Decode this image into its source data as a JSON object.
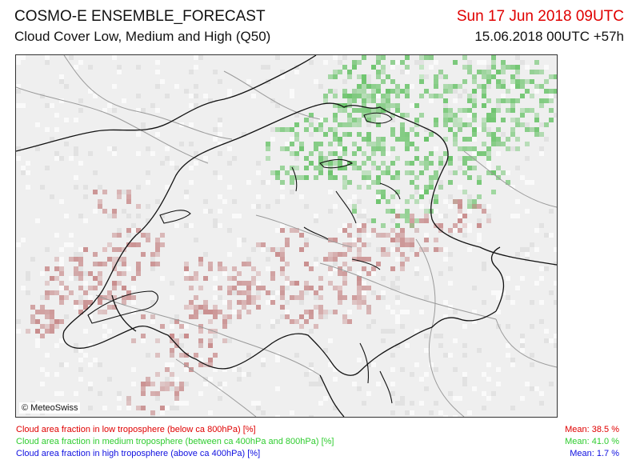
{
  "header": {
    "title": "COSMO-E ENSEMBLE_FORECAST",
    "subtitle": "Cloud Cover Low, Medium and High (Q50)",
    "valid_time": "Sun 17 Jun 2018 09UTC",
    "run_info": "15.06.2018 00UTC +57h"
  },
  "map": {
    "copyright": "© MeteoSwiss",
    "colors": {
      "low": "#c88c8c",
      "medium": "#6cc46c",
      "background": "#eeeeee",
      "borders": "#111111",
      "relief": "#999999"
    }
  },
  "legend": [
    {
      "label": "Cloud area fraction in low troposphere (below ca 800hPa) [%]",
      "mean": "Mean:  38.5 %",
      "color": "#e00000"
    },
    {
      "label": "Cloud area fraction in medium troposphere (between ca 400hPa and 800hPa) [%]",
      "mean": "Mean:  41.0 %",
      "color": "#2fcc2f"
    },
    {
      "label": "Cloud area fraction in high troposphere (above ca 400hPa) [%]",
      "mean": "Mean:   1.7 %",
      "color": "#1010e0"
    }
  ]
}
